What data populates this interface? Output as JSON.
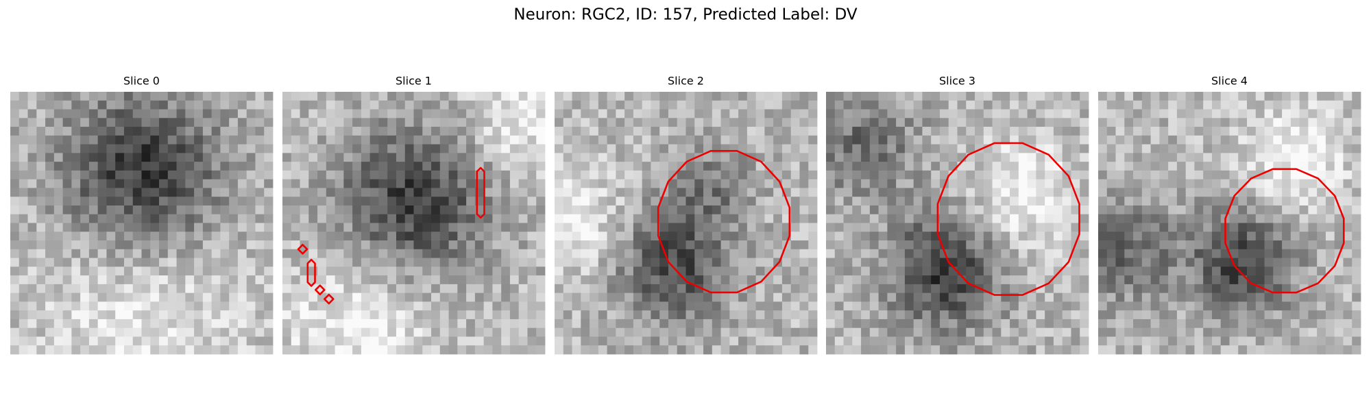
{
  "title": "Neuron: RGC2, ID: 157, Predicted Label: DV",
  "panels": [
    {
      "title": "Slice 0"
    },
    {
      "title": "Slice 1"
    },
    {
      "title": "Slice 2"
    },
    {
      "title": "Slice 3"
    },
    {
      "title": "Slice 4"
    }
  ]
}
